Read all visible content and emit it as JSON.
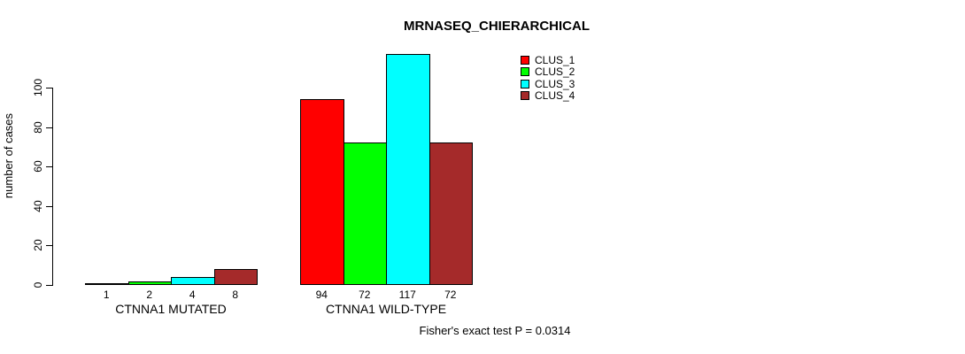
{
  "chart_data": {
    "type": "bar",
    "title": "MRNASEQ_CHIERARCHICAL",
    "ylabel": "number of cases",
    "xlabel": "",
    "ylim": [
      0,
      100
    ],
    "yticks": [
      0,
      20,
      40,
      60,
      80,
      100
    ],
    "grid": false,
    "legend_position": "top-right",
    "categories": [
      "CTNNA1 MUTATED",
      "CTNNA1 WILD-TYPE"
    ],
    "series": [
      {
        "name": "CLUS_1",
        "color": "#ff0000",
        "values": [
          1,
          94
        ]
      },
      {
        "name": "CLUS_2",
        "color": "#00ff00",
        "values": [
          2,
          72
        ]
      },
      {
        "name": "CLUS_3",
        "color": "#00ffff",
        "values": [
          4,
          117
        ]
      },
      {
        "name": "CLUS_4",
        "color": "#a52a2a",
        "values": [
          8,
          72
        ]
      }
    ],
    "bar_value_labels": [
      [
        "1",
        "2",
        "4",
        "8"
      ],
      [
        "94",
        "72",
        "117",
        "72"
      ]
    ],
    "annotation": "Fisher's exact test P = 0.0314",
    "axis_color": "#000000"
  }
}
